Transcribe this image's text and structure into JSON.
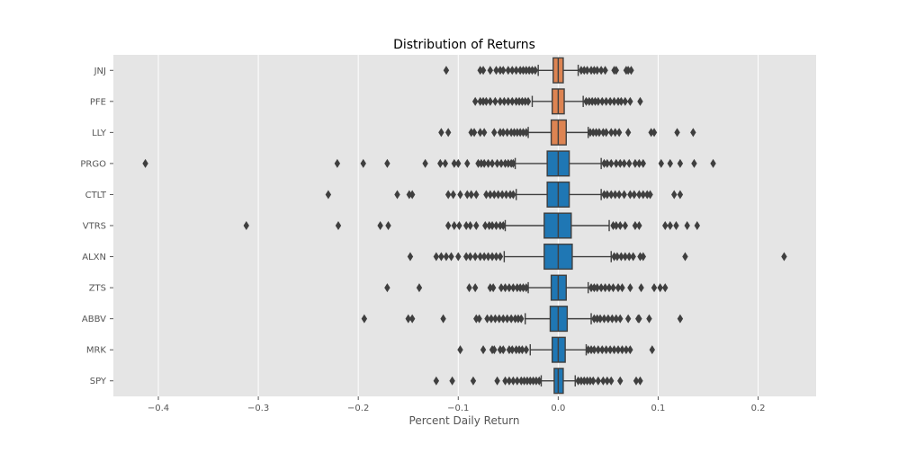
{
  "chart_data": {
    "type": "boxplot",
    "title": "Distribution of Returns",
    "xlabel": "Percent Daily Return",
    "ylabel": "",
    "xlim": [
      -0.445,
      0.258
    ],
    "xticks": [
      -0.4,
      -0.3,
      -0.2,
      -0.1,
      0.0,
      0.1,
      0.2
    ],
    "xtick_labels": [
      "−0.4",
      "−0.3",
      "−0.2",
      "−0.1",
      "0.0",
      "0.1",
      "0.2"
    ],
    "grid": true,
    "categories": [
      "JNJ",
      "PFE",
      "LLY",
      "PRGO",
      "CTLT",
      "VTRS",
      "ALXN",
      "ZTS",
      "ABBV",
      "MRK",
      "SPY"
    ],
    "series": [
      {
        "label": "JNJ",
        "color": "#dd8452",
        "q1": -0.005,
        "median": 0.0,
        "q3": 0.005,
        "whisker_low": -0.02,
        "whisker_high": 0.02,
        "outliers": [
          -0.112,
          -0.078,
          -0.075,
          -0.068,
          -0.062,
          -0.058,
          -0.055,
          -0.05,
          -0.046,
          -0.042,
          -0.038,
          -0.035,
          -0.032,
          -0.029,
          -0.026,
          -0.023,
          0.023,
          0.026,
          0.029,
          0.033,
          0.036,
          0.039,
          0.043,
          0.047,
          0.056,
          0.058,
          0.068,
          0.07,
          0.073
        ]
      },
      {
        "label": "PFE",
        "color": "#dd8452",
        "q1": -0.006,
        "median": 0.0,
        "q3": 0.006,
        "whisker_low": -0.026,
        "whisker_high": 0.025,
        "outliers": [
          -0.083,
          -0.078,
          -0.075,
          -0.072,
          -0.068,
          -0.063,
          -0.058,
          -0.054,
          -0.05,
          -0.046,
          -0.042,
          -0.039,
          -0.036,
          -0.033,
          -0.03,
          0.028,
          0.031,
          0.034,
          0.037,
          0.04,
          0.044,
          0.048,
          0.052,
          0.056,
          0.06,
          0.063,
          0.067,
          0.072,
          0.082
        ]
      },
      {
        "label": "LLY",
        "color": "#dd8452",
        "q1": -0.007,
        "median": 0.0,
        "q3": 0.008,
        "whisker_low": -0.03,
        "whisker_high": 0.03,
        "outliers": [
          -0.117,
          -0.11,
          -0.087,
          -0.084,
          -0.078,
          -0.074,
          -0.064,
          -0.058,
          -0.055,
          -0.051,
          -0.047,
          -0.044,
          -0.041,
          -0.038,
          -0.035,
          -0.032,
          0.032,
          0.035,
          0.038,
          0.041,
          0.045,
          0.048,
          0.053,
          0.057,
          0.061,
          0.07,
          0.093,
          0.096,
          0.119,
          0.135
        ]
      },
      {
        "label": "PRGO",
        "color": "#1f77b4",
        "q1": -0.011,
        "median": 0.0,
        "q3": 0.011,
        "whisker_low": -0.043,
        "whisker_high": 0.043,
        "outliers": [
          -0.413,
          -0.221,
          -0.195,
          -0.171,
          -0.133,
          -0.118,
          -0.113,
          -0.104,
          -0.1,
          -0.091,
          -0.08,
          -0.077,
          -0.074,
          -0.07,
          -0.066,
          -0.061,
          -0.057,
          -0.053,
          -0.05,
          -0.047,
          -0.045,
          0.046,
          0.049,
          0.053,
          0.058,
          0.062,
          0.066,
          0.071,
          0.077,
          0.081,
          0.085,
          0.103,
          0.112,
          0.122,
          0.136,
          0.155
        ]
      },
      {
        "label": "CTLT",
        "color": "#1f77b4",
        "q1": -0.011,
        "median": 0.0,
        "q3": 0.011,
        "whisker_low": -0.042,
        "whisker_high": 0.043,
        "outliers": [
          -0.23,
          -0.161,
          -0.149,
          -0.146,
          -0.11,
          -0.105,
          -0.098,
          -0.091,
          -0.087,
          -0.082,
          -0.072,
          -0.068,
          -0.064,
          -0.06,
          -0.056,
          -0.052,
          -0.048,
          -0.045,
          0.046,
          0.049,
          0.053,
          0.057,
          0.061,
          0.066,
          0.072,
          0.076,
          0.081,
          0.085,
          0.089,
          0.092,
          0.116,
          0.122
        ]
      },
      {
        "label": "VTRS",
        "color": "#1f77b4",
        "q1": -0.014,
        "median": 0.0,
        "q3": 0.013,
        "whisker_low": -0.053,
        "whisker_high": 0.051,
        "outliers": [
          -0.312,
          -0.22,
          -0.178,
          -0.17,
          -0.11,
          -0.104,
          -0.099,
          -0.092,
          -0.088,
          -0.082,
          -0.073,
          -0.069,
          -0.066,
          -0.062,
          -0.058,
          -0.055,
          0.055,
          0.058,
          0.062,
          0.067,
          0.077,
          0.081,
          0.107,
          0.112,
          0.118,
          0.129,
          0.139
        ]
      },
      {
        "label": "ALXN",
        "color": "#1f77b4",
        "q1": -0.014,
        "median": 0.0,
        "q3": 0.014,
        "whisker_low": -0.054,
        "whisker_high": 0.053,
        "outliers": [
          -0.148,
          -0.122,
          -0.117,
          -0.112,
          -0.107,
          -0.1,
          -0.092,
          -0.088,
          -0.083,
          -0.078,
          -0.074,
          -0.07,
          -0.066,
          -0.062,
          -0.058,
          0.056,
          0.059,
          0.063,
          0.067,
          0.071,
          0.075,
          0.082,
          0.085,
          0.127,
          0.226
        ]
      },
      {
        "label": "ZTS",
        "color": "#1f77b4",
        "q1": -0.007,
        "median": 0.0,
        "q3": 0.008,
        "whisker_low": -0.03,
        "whisker_high": 0.03,
        "outliers": [
          -0.171,
          -0.139,
          -0.089,
          -0.083,
          -0.068,
          -0.065,
          -0.057,
          -0.053,
          -0.049,
          -0.045,
          -0.041,
          -0.038,
          -0.035,
          -0.032,
          0.033,
          0.036,
          0.039,
          0.043,
          0.047,
          0.051,
          0.055,
          0.06,
          0.064,
          0.072,
          0.083,
          0.096,
          0.102,
          0.107
        ]
      },
      {
        "label": "ABBV",
        "color": "#1f77b4",
        "q1": -0.008,
        "median": 0.0,
        "q3": 0.009,
        "whisker_low": -0.033,
        "whisker_high": 0.033,
        "outliers": [
          -0.194,
          -0.15,
          -0.146,
          -0.115,
          -0.082,
          -0.079,
          -0.071,
          -0.067,
          -0.063,
          -0.059,
          -0.055,
          -0.051,
          -0.047,
          -0.043,
          -0.04,
          -0.037,
          0.036,
          0.039,
          0.042,
          0.046,
          0.05,
          0.054,
          0.058,
          0.062,
          0.07,
          0.08,
          0.081,
          0.091,
          0.122
        ]
      },
      {
        "label": "MRK",
        "color": "#1f77b4",
        "q1": -0.006,
        "median": 0.0,
        "q3": 0.007,
        "whisker_low": -0.028,
        "whisker_high": 0.028,
        "outliers": [
          -0.098,
          -0.075,
          -0.066,
          -0.064,
          -0.058,
          -0.055,
          -0.049,
          -0.046,
          -0.042,
          -0.039,
          -0.036,
          -0.032,
          0.03,
          0.033,
          0.036,
          0.04,
          0.044,
          0.048,
          0.052,
          0.056,
          0.06,
          0.064,
          0.068,
          0.072,
          0.094
        ]
      },
      {
        "label": "SPY",
        "color": "#1f77b4",
        "q1": -0.004,
        "median": 0.0,
        "q3": 0.005,
        "whisker_low": -0.017,
        "whisker_high": 0.017,
        "outliers": [
          -0.122,
          -0.106,
          -0.085,
          -0.061,
          -0.053,
          -0.049,
          -0.045,
          -0.041,
          -0.037,
          -0.034,
          -0.031,
          -0.028,
          -0.025,
          -0.022,
          -0.019,
          0.02,
          0.023,
          0.026,
          0.029,
          0.032,
          0.035,
          0.04,
          0.045,
          0.049,
          0.053,
          0.062,
          0.078,
          0.082
        ]
      }
    ]
  },
  "colors": {
    "plot_bg": "#e5e5e5",
    "grid": "#ffffff",
    "box_orange": "#dd8452",
    "box_blue": "#1f77b4",
    "outline": "#3f3f3f"
  }
}
